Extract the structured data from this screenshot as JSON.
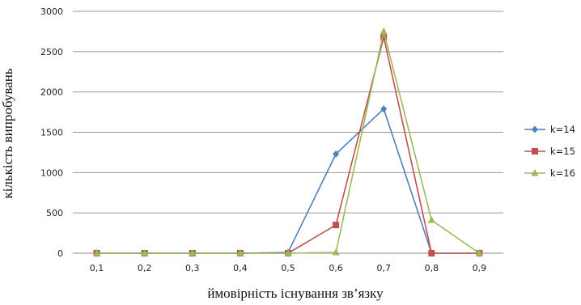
{
  "chart_data": {
    "type": "line",
    "xlabel": "ймовірність існування зв’язку",
    "ylabel": "кількість випробувань",
    "categories": [
      "0,1",
      "0,2",
      "0,3",
      "0,4",
      "0,5",
      "0,6",
      "0,7",
      "0,8",
      "0,9"
    ],
    "ylim": [
      0,
      3000
    ],
    "yticks": [
      0,
      500,
      1000,
      1500,
      2000,
      2500,
      3000
    ],
    "grid": "horizontal",
    "legend_position": "right",
    "series": [
      {
        "name": "k=14",
        "color": "#4f81bd",
        "marker": "diamond",
        "values": [
          0,
          0,
          0,
          0,
          10,
          1230,
          1790,
          0,
          0
        ]
      },
      {
        "name": "k=15",
        "color": "#c0504d",
        "marker": "square",
        "values": [
          0,
          0,
          0,
          0,
          0,
          350,
          2680,
          0,
          0
        ]
      },
      {
        "name": "k=16",
        "color": "#9bbb59",
        "marker": "triangle",
        "values": [
          0,
          0,
          0,
          0,
          0,
          10,
          2750,
          410,
          0
        ]
      }
    ]
  }
}
